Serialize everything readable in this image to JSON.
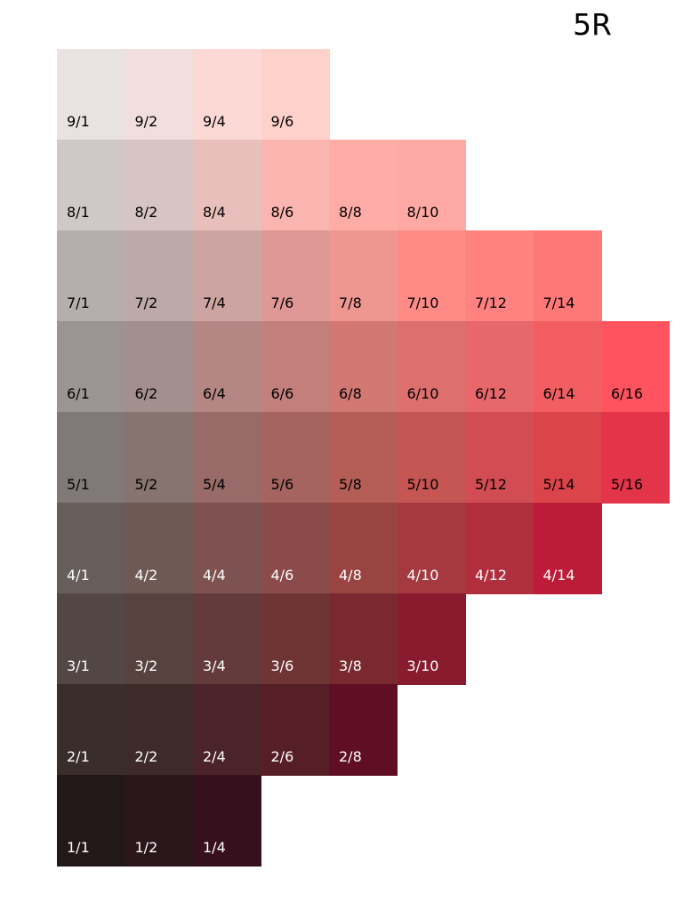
{
  "title": "5R",
  "rows": [
    {
      "label_color": "#000000",
      "cells": [
        {
          "label": "9/1",
          "color": "#e8e2e1"
        },
        {
          "label": "9/2",
          "color": "#f0dfdd"
        },
        {
          "label": "9/4",
          "color": "#fcd9d4"
        },
        {
          "label": "9/6",
          "color": "#ffd1cb"
        }
      ]
    },
    {
      "label_color": "#000000",
      "cells": [
        {
          "label": "8/1",
          "color": "#d0c8c6"
        },
        {
          "label": "8/2",
          "color": "#d6c5c3"
        },
        {
          "label": "8/4",
          "color": "#e8bfbb"
        },
        {
          "label": "8/6",
          "color": "#fbb5b0"
        },
        {
          "label": "8/8",
          "color": "#ffaca6"
        },
        {
          "label": "8/10",
          "color": "#ffa9a4"
        }
      ]
    },
    {
      "label_color": "#000000",
      "cells": [
        {
          "label": "7/1",
          "color": "#b6aeac"
        },
        {
          "label": "7/2",
          "color": "#bca9a8"
        },
        {
          "label": "7/4",
          "color": "#cca4a1"
        },
        {
          "label": "7/6",
          "color": "#df9895"
        },
        {
          "label": "7/8",
          "color": "#ee9690"
        },
        {
          "label": "7/10",
          "color": "#ff8b86"
        },
        {
          "label": "7/12",
          "color": "#ff8280"
        },
        {
          "label": "7/14",
          "color": "#ff7878"
        }
      ]
    },
    {
      "label_color": "#000000",
      "cells": [
        {
          "label": "6/1",
          "color": "#9c9492"
        },
        {
          "label": "6/2",
          "color": "#a38f8e"
        },
        {
          "label": "6/4",
          "color": "#b48784"
        },
        {
          "label": "6/6",
          "color": "#c27f7c"
        },
        {
          "label": "6/8",
          "color": "#d17873"
        },
        {
          "label": "6/10",
          "color": "#dd706d"
        },
        {
          "label": "6/12",
          "color": "#e8676a"
        },
        {
          "label": "6/14",
          "color": "#f35e62"
        },
        {
          "label": "6/16",
          "color": "#ff5460"
        }
      ]
    },
    {
      "label_color": "#000000",
      "cells": [
        {
          "label": "5/1",
          "color": "#807977"
        },
        {
          "label": "5/2",
          "color": "#87736f"
        },
        {
          "label": "5/4",
          "color": "#986b68"
        },
        {
          "label": "5/6",
          "color": "#a66461"
        },
        {
          "label": "5/8",
          "color": "#b55e58"
        },
        {
          "label": "5/10",
          "color": "#c65654"
        },
        {
          "label": "5/12",
          "color": "#d24c53"
        },
        {
          "label": "5/14",
          "color": "#dc444c"
        },
        {
          "label": "5/16",
          "color": "#e3344a"
        }
      ]
    },
    {
      "label_color": "#ffffff",
      "cells": [
        {
          "label": "4/1",
          "color": "#675e5c"
        },
        {
          "label": "4/2",
          "color": "#6e5955"
        },
        {
          "label": "4/4",
          "color": "#7d5250"
        },
        {
          "label": "4/6",
          "color": "#8b4b4b"
        },
        {
          "label": "4/8",
          "color": "#994440"
        },
        {
          "label": "4/10",
          "color": "#a43a3f"
        },
        {
          "label": "4/12",
          "color": "#b12e3c"
        },
        {
          "label": "4/14",
          "color": "#bc1c38"
        }
      ]
    },
    {
      "label_color": "#ffffff",
      "cells": [
        {
          "label": "3/1",
          "color": "#524745"
        },
        {
          "label": "3/2",
          "color": "#584240"
        },
        {
          "label": "3/4",
          "color": "#633b3c"
        },
        {
          "label": "3/6",
          "color": "#6f3535"
        },
        {
          "label": "3/8",
          "color": "#7b2930"
        },
        {
          "label": "3/10",
          "color": "#881c2e"
        }
      ]
    },
    {
      "label_color": "#ffffff",
      "cells": [
        {
          "label": "2/1",
          "color": "#3a2e2d"
        },
        {
          "label": "2/2",
          "color": "#3f2a2a"
        },
        {
          "label": "2/4",
          "color": "#4a2429"
        },
        {
          "label": "2/6",
          "color": "#561e27"
        },
        {
          "label": "2/8",
          "color": "#5f0e24"
        }
      ]
    },
    {
      "label_color": "#ffffff",
      "cells": [
        {
          "label": "1/1",
          "color": "#231818"
        },
        {
          "label": "1/2",
          "color": "#2a161b"
        },
        {
          "label": "1/4",
          "color": "#36101d"
        }
      ]
    }
  ]
}
